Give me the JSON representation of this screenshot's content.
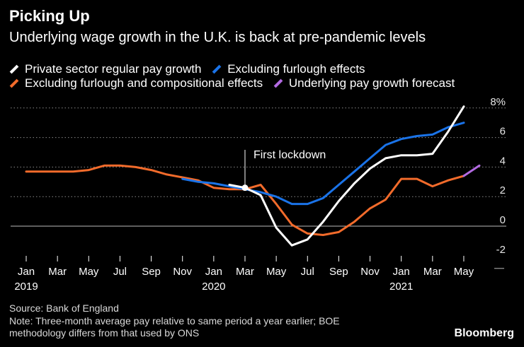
{
  "header": {
    "title": "Picking Up",
    "subtitle": "Underlying wage growth in the U.K. is back at pre-pandemic levels"
  },
  "legend": [
    {
      "label": "Private sector regular pay growth",
      "color": "#ffffff"
    },
    {
      "label": "Excluding furlough effects",
      "color": "#1a73e8"
    },
    {
      "label": "Excluding furlough and compositional effects",
      "color": "#f26b2b"
    },
    {
      "label": "Underlying pay growth forecast",
      "color": "#b36ae2"
    }
  ],
  "footer": {
    "source": "Source: Bank of England",
    "note_line1": "Note: Three-month average pay relative to same period a year earlier; BOE",
    "note_line2": "methodology differs from that used by ONS",
    "brand": "Bloomberg"
  },
  "chart_data": {
    "type": "line",
    "title": "Picking Up",
    "ylim": [
      -2,
      8
    ],
    "y_ticks": [
      -2,
      0,
      2,
      4,
      6,
      8
    ],
    "y_tick_labels": [
      "-2",
      "0",
      "2",
      "4",
      "6",
      "8%"
    ],
    "x_ticks": [
      {
        "month": 0,
        "label": "Jan",
        "year": "2019"
      },
      {
        "month": 2,
        "label": "Mar"
      },
      {
        "month": 4,
        "label": "May"
      },
      {
        "month": 6,
        "label": "Jul"
      },
      {
        "month": 8,
        "label": "Sep"
      },
      {
        "month": 10,
        "label": "Nov"
      },
      {
        "month": 12,
        "label": "Jan",
        "year": "2020"
      },
      {
        "month": 14,
        "label": "Mar"
      },
      {
        "month": 16,
        "label": "May"
      },
      {
        "month": 18,
        "label": "Jul"
      },
      {
        "month": 20,
        "label": "Sep"
      },
      {
        "month": 22,
        "label": "Nov"
      },
      {
        "month": 24,
        "label": "Jan",
        "year": "2021"
      },
      {
        "month": 26,
        "label": "Mar"
      },
      {
        "month": 28,
        "label": "May"
      }
    ],
    "annotation": {
      "label": "First lockdown",
      "month": 14,
      "value": 2.6
    },
    "series": [
      {
        "name": "Excluding furlough and compositional effects",
        "color": "#f26b2b",
        "x": [
          0,
          1,
          2,
          3,
          4,
          5,
          6,
          7,
          8,
          9,
          10,
          11,
          12,
          13,
          14,
          15,
          16,
          17,
          18,
          19,
          20,
          21,
          22,
          23,
          24,
          25,
          26,
          27,
          28
        ],
        "y": [
          3.7,
          3.7,
          3.7,
          3.7,
          3.8,
          4.1,
          4.1,
          4.0,
          3.8,
          3.5,
          3.3,
          3.1,
          2.6,
          2.5,
          2.5,
          2.8,
          1.5,
          0.1,
          -0.5,
          -0.6,
          -0.4,
          0.3,
          1.2,
          1.8,
          3.2,
          3.2,
          2.7,
          3.1,
          3.4
        ]
      },
      {
        "name": "Excluding furlough effects",
        "color": "#1a73e8",
        "x": [
          10,
          11,
          12,
          13,
          14,
          15,
          16,
          17,
          18,
          19,
          20,
          21,
          22,
          23,
          24,
          25,
          26,
          27,
          28
        ],
        "y": [
          3.2,
          3.0,
          2.9,
          2.7,
          2.5,
          2.3,
          2.0,
          1.5,
          1.5,
          1.9,
          2.8,
          3.7,
          4.6,
          5.5,
          5.9,
          6.1,
          6.2,
          6.7,
          7.0
        ]
      },
      {
        "name": "Private sector regular pay growth",
        "color": "#ffffff",
        "x": [
          13,
          14,
          15,
          16,
          17,
          18,
          19,
          20,
          21,
          22,
          23,
          24,
          25,
          26,
          27,
          28
        ],
        "y": [
          2.8,
          2.6,
          2.1,
          -0.1,
          -1.3,
          -0.9,
          0.3,
          1.7,
          2.9,
          3.9,
          4.6,
          4.8,
          4.8,
          4.9,
          6.4,
          8.1
        ]
      },
      {
        "name": "Underlying pay growth forecast",
        "color": "#b36ae2",
        "x": [
          28,
          29
        ],
        "y": [
          3.4,
          4.1
        ]
      }
    ]
  }
}
